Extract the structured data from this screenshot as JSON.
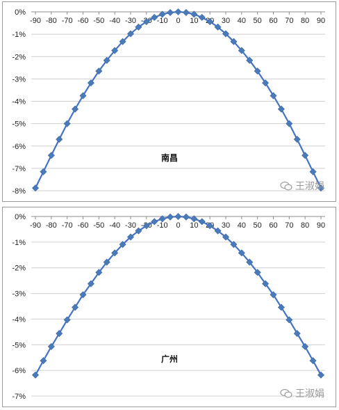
{
  "chart_data": [
    {
      "type": "line",
      "title": "南昌",
      "x": [
        -90,
        -85,
        -80,
        -75,
        -70,
        -65,
        -60,
        -55,
        -50,
        -45,
        -40,
        -35,
        -30,
        -25,
        -20,
        -15,
        -10,
        -5,
        0,
        5,
        10,
        15,
        20,
        25,
        30,
        35,
        40,
        45,
        50,
        55,
        60,
        65,
        70,
        75,
        80,
        85,
        90
      ],
      "x_ticks": [
        -90,
        -80,
        -70,
        -60,
        -50,
        -40,
        -30,
        -20,
        -10,
        0,
        10,
        20,
        30,
        40,
        50,
        60,
        70,
        80,
        90
      ],
      "y_ticks": [
        "0%",
        "-1%",
        "-2%",
        "-3%",
        "-4%",
        "-5%",
        "-6%",
        "-7%",
        "-8%"
      ],
      "ylim": [
        -8,
        0
      ],
      "y_unit": "%",
      "grid": "horizontal",
      "line_color": "#4472c4",
      "marker_color": "#4a7ab8",
      "series": [
        {
          "values": [
            -7.88,
            -7.15,
            -6.42,
            -5.7,
            -5.0,
            -4.35,
            -3.75,
            -3.18,
            -2.65,
            -2.17,
            -1.73,
            -1.33,
            -0.98,
            -0.68,
            -0.44,
            -0.25,
            -0.11,
            -0.03,
            0.0,
            -0.03,
            -0.11,
            -0.25,
            -0.44,
            -0.68,
            -0.98,
            -1.33,
            -1.73,
            -2.17,
            -2.65,
            -3.18,
            -3.75,
            -4.35,
            -5.0,
            -5.7,
            -6.42,
            -7.15,
            -7.88
          ]
        }
      ]
    },
    {
      "type": "line",
      "title": "广州",
      "x": [
        -90,
        -85,
        -80,
        -75,
        -70,
        -65,
        -60,
        -55,
        -50,
        -45,
        -40,
        -35,
        -30,
        -25,
        -20,
        -15,
        -10,
        -5,
        0,
        5,
        10,
        15,
        20,
        25,
        30,
        35,
        40,
        45,
        50,
        55,
        60,
        65,
        70,
        75,
        80,
        85,
        90
      ],
      "x_ticks": [
        -90,
        -80,
        -70,
        -60,
        -50,
        -40,
        -30,
        -20,
        -10,
        0,
        10,
        20,
        30,
        40,
        50,
        60,
        70,
        80,
        90
      ],
      "y_ticks": [
        "0%",
        "-1%",
        "-2%",
        "-3%",
        "-4%",
        "-5%",
        "-6%",
        "-7%"
      ],
      "ylim": [
        -7,
        0
      ],
      "y_unit": "%",
      "grid": "horizontal",
      "line_color": "#4472c4",
      "marker_color": "#4a7ab8",
      "series": [
        {
          "values": [
            -6.18,
            -5.62,
            -5.07,
            -4.56,
            -4.03,
            -3.54,
            -3.05,
            -2.62,
            -2.18,
            -1.78,
            -1.42,
            -1.09,
            -0.8,
            -0.56,
            -0.36,
            -0.2,
            -0.09,
            -0.02,
            0.0,
            -0.02,
            -0.09,
            -0.2,
            -0.36,
            -0.56,
            -0.8,
            -1.09,
            -1.42,
            -1.78,
            -2.18,
            -2.62,
            -3.05,
            -3.54,
            -4.03,
            -4.56,
            -5.07,
            -5.62,
            -6.18
          ]
        }
      ]
    }
  ],
  "watermark": {
    "text": "王淑娟",
    "icon": "wechat-bubble-icon"
  }
}
